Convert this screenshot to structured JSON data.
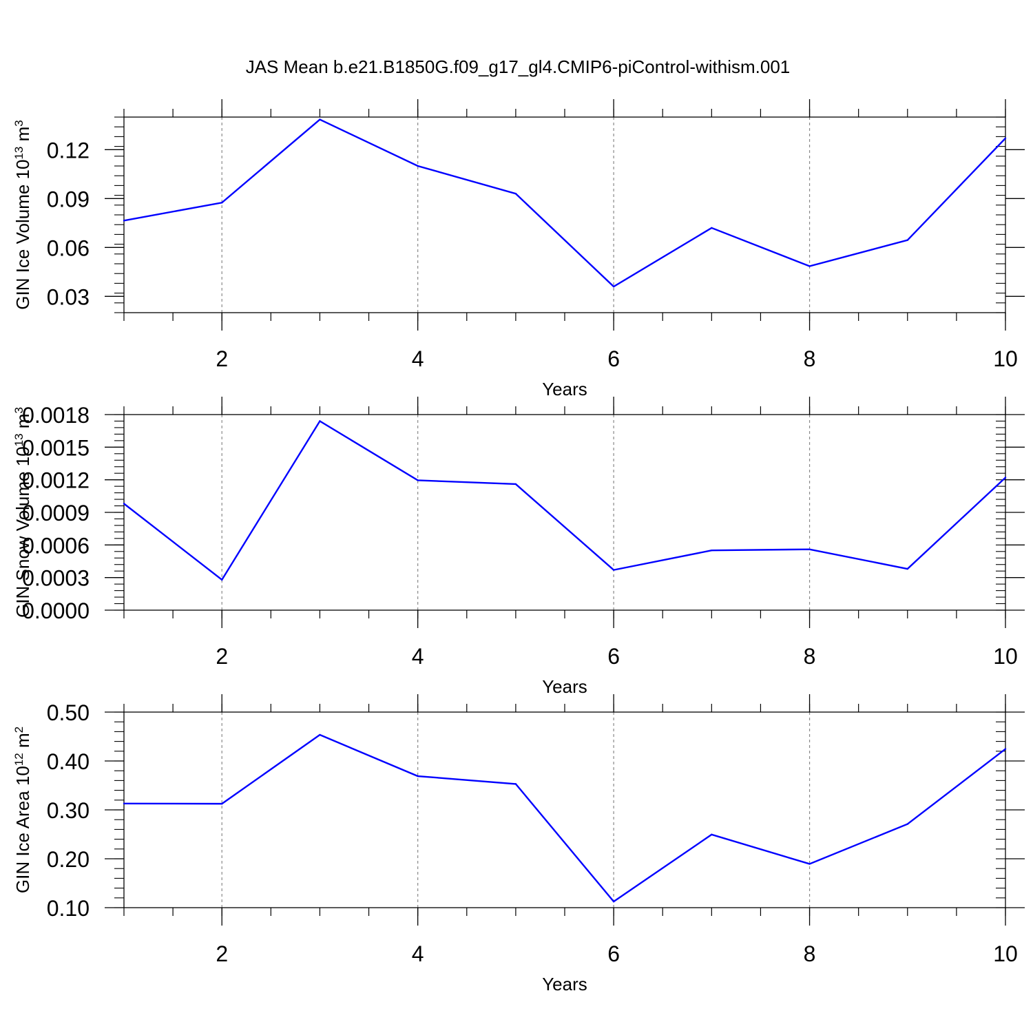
{
  "figure": {
    "title": "JAS Mean b.e21.B1850G.f09_g17_gl4.CMIP6-piControl-withism.001"
  },
  "chart_data": [
    {
      "type": "line",
      "title": "",
      "xlabel": "Years",
      "ylabel": "GIN Ice Volume 10",
      "ylabel_exp": "13",
      "ylabel_unit": " m",
      "ylabel_unit_exp": "3",
      "x": [
        1,
        2,
        3,
        4,
        5,
        6,
        7,
        8,
        9,
        10
      ],
      "xlim": [
        1,
        10
      ],
      "ylim": [
        0.02,
        0.14
      ],
      "xticks": [
        2,
        4,
        6,
        8,
        10
      ],
      "xtick_labels": [
        "2",
        "4",
        "6",
        "8",
        "10"
      ],
      "yticks": [
        0.03,
        0.06,
        0.09,
        0.12
      ],
      "ytick_labels": [
        "0.03",
        "0.06",
        "0.09",
        "0.12"
      ],
      "series": [
        {
          "values": [
            0.0765,
            0.0875,
            0.1385,
            0.11,
            0.093,
            0.036,
            0.072,
            0.0485,
            0.0645,
            0.127
          ],
          "color": "#0000ff"
        }
      ]
    },
    {
      "type": "line",
      "title": "",
      "xlabel": "Years",
      "ylabel": "GIN Snow Volume 10",
      "ylabel_exp": "13",
      "ylabel_unit": " m",
      "ylabel_unit_exp": "3",
      "x": [
        1,
        2,
        3,
        4,
        5,
        6,
        7,
        8,
        9,
        10
      ],
      "xlim": [
        1,
        10
      ],
      "ylim": [
        0.0,
        0.0018
      ],
      "xticks": [
        2,
        4,
        6,
        8,
        10
      ],
      "xtick_labels": [
        "2",
        "4",
        "6",
        "8",
        "10"
      ],
      "yticks": [
        0.0,
        0.0003,
        0.0006,
        0.0009,
        0.0012,
        0.0015,
        0.0018
      ],
      "ytick_labels": [
        "0.0000",
        "0.0003",
        "0.0006",
        "0.0009",
        "0.0012",
        "0.0015",
        "0.0018"
      ],
      "series": [
        {
          "values": [
            0.00098,
            0.00028,
            0.00174,
            0.001195,
            0.00116,
            0.00037,
            0.00055,
            0.00056,
            0.00038,
            0.00122
          ],
          "color": "#0000ff"
        }
      ]
    },
    {
      "type": "line",
      "title": "",
      "xlabel": "Years",
      "ylabel": "GIN Ice Area 10",
      "ylabel_exp": "12",
      "ylabel_unit": " m",
      "ylabel_unit_exp": "2",
      "x": [
        1,
        2,
        3,
        4,
        5,
        6,
        7,
        8,
        9,
        10
      ],
      "xlim": [
        1,
        10
      ],
      "ylim": [
        0.1,
        0.5
      ],
      "xticks": [
        2,
        4,
        6,
        8,
        10
      ],
      "xtick_labels": [
        "2",
        "4",
        "6",
        "8",
        "10"
      ],
      "yticks": [
        0.1,
        0.2,
        0.3,
        0.4,
        0.5
      ],
      "ytick_labels": [
        "0.10",
        "0.20",
        "0.30",
        "0.40",
        "0.50"
      ],
      "series": [
        {
          "values": [
            0.313,
            0.3125,
            0.4535,
            0.369,
            0.353,
            0.1125,
            0.2495,
            0.1895,
            0.271,
            0.4245
          ],
          "color": "#0000ff"
        }
      ]
    }
  ]
}
